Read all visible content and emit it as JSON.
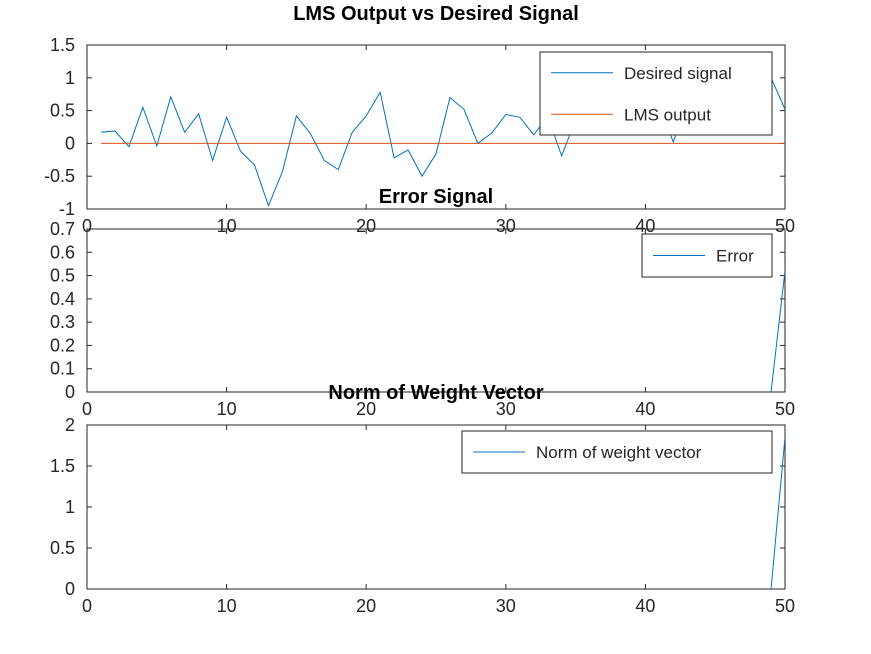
{
  "chart_data": [
    {
      "type": "line",
      "title": "LMS Output vs Desired Signal",
      "xlabel": "",
      "ylabel": "",
      "xlim": [
        0,
        50
      ],
      "ylim": [
        -1,
        1.5
      ],
      "xticks": [
        0,
        10,
        20,
        30,
        40,
        50
      ],
      "yticks": [
        -1,
        -0.5,
        0,
        0.5,
        1,
        1.5
      ],
      "xtick_labels": [
        "0",
        "10",
        "20",
        "30",
        "40",
        "50"
      ],
      "ytick_labels": [
        "-1",
        "-0.5",
        "0",
        "0.5",
        "1",
        "1.5"
      ],
      "grid": false,
      "legend_position": "top-right",
      "series": [
        {
          "name": "Desired signal",
          "color": "#0072bd",
          "x": [
            1,
            2,
            3,
            4,
            5,
            6,
            7,
            8,
            9,
            10,
            11,
            12,
            13,
            14,
            15,
            16,
            17,
            18,
            19,
            20,
            21,
            22,
            23,
            24,
            25,
            26,
            27,
            28,
            29,
            30,
            31,
            32,
            33,
            34,
            35,
            36,
            37,
            38,
            39,
            40,
            41,
            42,
            43,
            44,
            45,
            46,
            47,
            48,
            49,
            50
          ],
          "y": [
            0.17,
            0.19,
            -0.05,
            0.55,
            -0.04,
            0.71,
            0.17,
            0.45,
            -0.26,
            0.4,
            -0.12,
            -0.33,
            -0.95,
            -0.43,
            0.42,
            0.15,
            -0.26,
            -0.4,
            0.17,
            0.42,
            0.78,
            -0.22,
            -0.1,
            -0.5,
            -0.16,
            0.7,
            0.52,
            0.0,
            0.16,
            0.44,
            0.4,
            0.13,
            0.41,
            -0.19,
            0.36,
            0.53,
            0.9,
            0.71,
            0.44,
            0.53,
            0.56,
            0.02,
            0.65,
            0.32,
            0.58,
            0.43,
            0.86,
            0.88,
            1.0,
            0.52
          ]
        },
        {
          "name": "LMS output",
          "color": "#d95319",
          "x": [
            1,
            2,
            3,
            4,
            5,
            6,
            7,
            8,
            9,
            10,
            11,
            12,
            13,
            14,
            15,
            16,
            17,
            18,
            19,
            20,
            21,
            22,
            23,
            24,
            25,
            26,
            27,
            28,
            29,
            30,
            31,
            32,
            33,
            34,
            35,
            36,
            37,
            38,
            39,
            40,
            41,
            42,
            43,
            44,
            45,
            46,
            47,
            48,
            49,
            50
          ],
          "y": [
            0,
            0,
            0,
            0,
            0,
            0,
            0,
            0,
            0,
            0,
            0,
            0,
            0,
            0,
            0,
            0,
            0,
            0,
            0,
            0,
            0,
            0,
            0,
            0,
            0,
            0,
            0,
            0,
            0,
            0,
            0,
            0,
            0,
            0,
            0,
            0,
            0,
            0,
            0,
            0,
            0,
            0,
            0,
            0,
            0,
            0,
            0,
            0,
            0,
            0
          ]
        }
      ]
    },
    {
      "type": "line",
      "title": "Error Signal",
      "xlabel": "",
      "ylabel": "",
      "xlim": [
        0,
        50
      ],
      "ylim": [
        0,
        0.7
      ],
      "xticks": [
        0,
        10,
        20,
        30,
        40,
        50
      ],
      "yticks": [
        0,
        0.1,
        0.2,
        0.3,
        0.4,
        0.5,
        0.6,
        0.7
      ],
      "xtick_labels": [
        "0",
        "10",
        "20",
        "30",
        "40",
        "50"
      ],
      "ytick_labels": [
        "0",
        "0.1",
        "0.2",
        "0.3",
        "0.4",
        "0.5",
        "0.6",
        "0.7"
      ],
      "grid": false,
      "legend_position": "top-right",
      "series": [
        {
          "name": "Error",
          "color": "#0072bd",
          "x": [
            49,
            50
          ],
          "y": [
            0,
            0.52
          ]
        }
      ]
    },
    {
      "type": "line",
      "title": "Norm of Weight Vector",
      "xlabel": "",
      "ylabel": "",
      "xlim": [
        0,
        50
      ],
      "ylim": [
        0,
        2
      ],
      "xticks": [
        0,
        10,
        20,
        30,
        40,
        50
      ],
      "yticks": [
        0,
        0.5,
        1,
        1.5,
        2
      ],
      "xtick_labels": [
        "0",
        "10",
        "20",
        "30",
        "40",
        "50"
      ],
      "ytick_labels": [
        "0",
        "0.5",
        "1",
        "1.5",
        "2"
      ],
      "grid": false,
      "legend_position": "top-right",
      "series": [
        {
          "name": "Norm of weight vector",
          "color": "#0072bd",
          "x": [
            49,
            50
          ],
          "y": [
            0,
            1.85
          ]
        }
      ]
    }
  ]
}
